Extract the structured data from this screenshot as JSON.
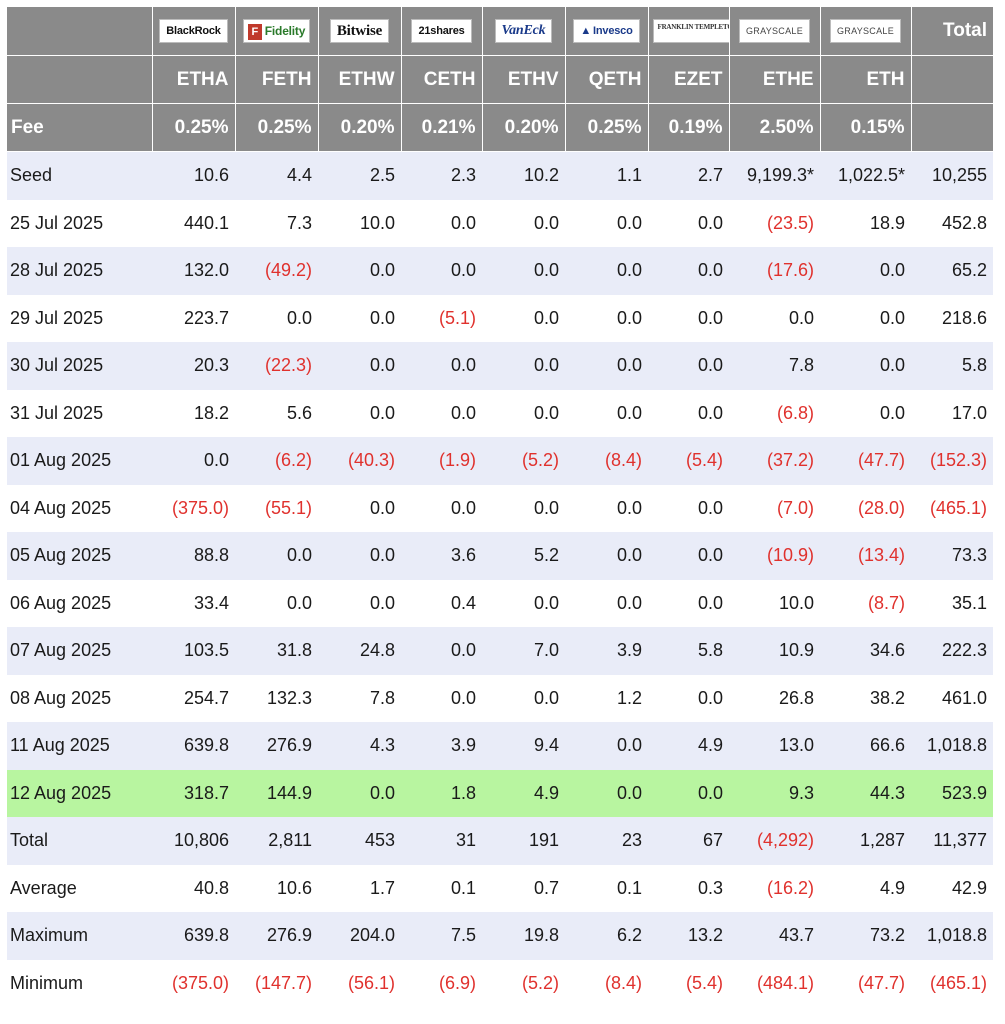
{
  "header": {
    "issuers": [
      {
        "logo_text": "BlackRock",
        "logo_icon": "blackrock-logo",
        "ticker": "ETHA",
        "fee": "0.25%"
      },
      {
        "logo_text": "Fidelity",
        "logo_icon": "fidelity-logo",
        "ticker": "FETH",
        "fee": "0.25%"
      },
      {
        "logo_text": "Bitwise",
        "logo_icon": "bitwise-logo",
        "ticker": "ETHW",
        "fee": "0.20%"
      },
      {
        "logo_text": "21shares",
        "logo_icon": "21shares-logo",
        "ticker": "CETH",
        "fee": "0.21%"
      },
      {
        "logo_text": "VanEck",
        "logo_icon": "vaneck-logo",
        "ticker": "ETHV",
        "fee": "0.20%"
      },
      {
        "logo_text": "Invesco",
        "logo_icon": "invesco-logo",
        "ticker": "QETH",
        "fee": "0.25%"
      },
      {
        "logo_text": "FRANKLIN TEMPLETON",
        "logo_icon": "franklin-templeton-logo",
        "ticker": "EZET",
        "fee": "0.19%"
      },
      {
        "logo_text": "GRAYSCALE",
        "logo_icon": "grayscale-logo",
        "ticker": "ETHE",
        "fee": "2.50%"
      },
      {
        "logo_text": "GRAYSCALE",
        "logo_icon": "grayscale-logo",
        "ticker": "ETH",
        "fee": "0.15%"
      }
    ],
    "total_label": "Total",
    "fee_label": "Fee"
  },
  "rows": [
    {
      "label": "Seed",
      "cells": [
        "10.6",
        "4.4",
        "2.5",
        "2.3",
        "10.2",
        "1.1",
        "2.7",
        "9,199.3*",
        "1,022.5*",
        "10,255"
      ]
    },
    {
      "label": "25 Jul 2025",
      "cells": [
        "440.1",
        "7.3",
        "10.0",
        "0.0",
        "0.0",
        "0.0",
        "0.0",
        "(23.5)",
        "18.9",
        "452.8"
      ]
    },
    {
      "label": "28 Jul 2025",
      "cells": [
        "132.0",
        "(49.2)",
        "0.0",
        "0.0",
        "0.0",
        "0.0",
        "0.0",
        "(17.6)",
        "0.0",
        "65.2"
      ]
    },
    {
      "label": "29 Jul 2025",
      "cells": [
        "223.7",
        "0.0",
        "0.0",
        "(5.1)",
        "0.0",
        "0.0",
        "0.0",
        "0.0",
        "0.0",
        "218.6"
      ]
    },
    {
      "label": "30 Jul 2025",
      "cells": [
        "20.3",
        "(22.3)",
        "0.0",
        "0.0",
        "0.0",
        "0.0",
        "0.0",
        "7.8",
        "0.0",
        "5.8"
      ]
    },
    {
      "label": "31 Jul 2025",
      "cells": [
        "18.2",
        "5.6",
        "0.0",
        "0.0",
        "0.0",
        "0.0",
        "0.0",
        "(6.8)",
        "0.0",
        "17.0"
      ]
    },
    {
      "label": "01 Aug 2025",
      "cells": [
        "0.0",
        "(6.2)",
        "(40.3)",
        "(1.9)",
        "(5.2)",
        "(8.4)",
        "(5.4)",
        "(37.2)",
        "(47.7)",
        "(152.3)"
      ]
    },
    {
      "label": "04 Aug 2025",
      "cells": [
        "(375.0)",
        "(55.1)",
        "0.0",
        "0.0",
        "0.0",
        "0.0",
        "0.0",
        "(7.0)",
        "(28.0)",
        "(465.1)"
      ]
    },
    {
      "label": "05 Aug 2025",
      "cells": [
        "88.8",
        "0.0",
        "0.0",
        "3.6",
        "5.2",
        "0.0",
        "0.0",
        "(10.9)",
        "(13.4)",
        "73.3"
      ]
    },
    {
      "label": "06 Aug 2025",
      "cells": [
        "33.4",
        "0.0",
        "0.0",
        "0.4",
        "0.0",
        "0.0",
        "0.0",
        "10.0",
        "(8.7)",
        "35.1"
      ]
    },
    {
      "label": "07 Aug 2025",
      "cells": [
        "103.5",
        "31.8",
        "24.8",
        "0.0",
        "7.0",
        "3.9",
        "5.8",
        "10.9",
        "34.6",
        "222.3"
      ]
    },
    {
      "label": "08 Aug 2025",
      "cells": [
        "254.7",
        "132.3",
        "7.8",
        "0.0",
        "0.0",
        "1.2",
        "0.0",
        "26.8",
        "38.2",
        "461.0"
      ]
    },
    {
      "label": "11 Aug 2025",
      "cells": [
        "639.8",
        "276.9",
        "4.3",
        "3.9",
        "9.4",
        "0.0",
        "4.9",
        "13.0",
        "66.6",
        "1,018.8"
      ]
    },
    {
      "label": "12 Aug 2025",
      "highlight": true,
      "cells": [
        "318.7",
        "144.9",
        "0.0",
        "1.8",
        "4.9",
        "0.0",
        "0.0",
        "9.3",
        "44.3",
        "523.9"
      ]
    },
    {
      "label": "Total",
      "summary": true,
      "cells": [
        "10,806",
        "2,811",
        "453",
        "31",
        "191",
        "23",
        "67",
        "(4,292)",
        "1,287",
        "11,377"
      ]
    },
    {
      "label": "Average",
      "summary": true,
      "cells": [
        "40.8",
        "10.6",
        "1.7",
        "0.1",
        "0.7",
        "0.1",
        "0.3",
        "(16.2)",
        "4.9",
        "42.9"
      ]
    },
    {
      "label": "Maximum",
      "summary": true,
      "cells": [
        "639.8",
        "276.9",
        "204.0",
        "7.5",
        "19.8",
        "6.2",
        "13.2",
        "43.7",
        "73.2",
        "1,018.8"
      ]
    },
    {
      "label": "Minimum",
      "summary": true,
      "cells": [
        "(375.0)",
        "(147.7)",
        "(56.1)",
        "(6.9)",
        "(5.2)",
        "(8.4)",
        "(5.4)",
        "(484.1)",
        "(47.7)",
        "(465.1)"
      ]
    }
  ],
  "colors": {
    "header_bg": "#8a8a8a",
    "row_stripe": "#e9ecf8",
    "highlight_row": "#b8f5a0",
    "negative_text": "#e0312d"
  }
}
